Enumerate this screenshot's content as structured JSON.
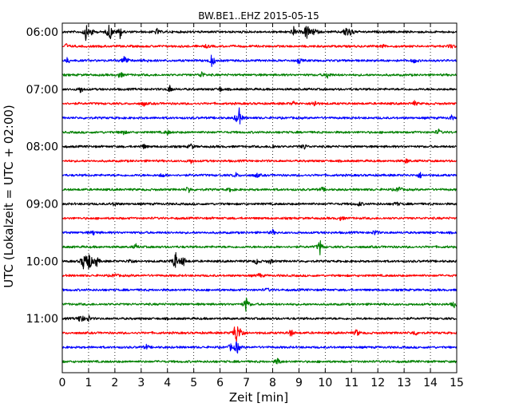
{
  "chart_data": {
    "type": "line",
    "title": "BW.BE1..EHZ 2015-05-15",
    "xlabel": "Zeit  [min]",
    "ylabel": "UTC (Lokalzeit = UTC + 02:00)",
    "xlim": [
      0,
      15
    ],
    "x_ticks": [
      "0",
      "1",
      "2",
      "3",
      "4",
      "5",
      "6",
      "7",
      "8",
      "9",
      "10",
      "11",
      "12",
      "13",
      "14",
      "15"
    ],
    "y_tick_labels": [
      "06:00",
      "07:00",
      "08:00",
      "09:00",
      "10:00",
      "11:00"
    ],
    "grid": "vertical-dotted",
    "trace_colors": [
      "#000000",
      "#ff0000",
      "#0000ff",
      "#008000"
    ],
    "traces": [
      {
        "start": "06:00",
        "color": "#000000",
        "events": [
          [
            0.9,
            10
          ],
          [
            1.1,
            6
          ],
          [
            1.8,
            14
          ],
          [
            2.2,
            8
          ],
          [
            3.6,
            4
          ],
          [
            8.8,
            6
          ],
          [
            9.3,
            14
          ],
          [
            9.6,
            6
          ],
          [
            10.8,
            10
          ],
          [
            11.0,
            6
          ]
        ]
      },
      {
        "start": "06:15",
        "color": "#ff0000",
        "events": [
          [
            0.15,
            3
          ],
          [
            5.5,
            2
          ],
          [
            12.2,
            2
          ],
          [
            14.8,
            3
          ]
        ]
      },
      {
        "start": "06:30",
        "color": "#0000ff",
        "events": [
          [
            0.2,
            4
          ],
          [
            2.4,
            10
          ],
          [
            3.2,
            3
          ],
          [
            5.7,
            10
          ],
          [
            9.0,
            4
          ],
          [
            13.4,
            3
          ]
        ]
      },
      {
        "start": "06:45",
        "color": "#008000",
        "events": [
          [
            2.2,
            5
          ],
          [
            5.3,
            5
          ],
          [
            10.1,
            5
          ]
        ]
      },
      {
        "start": "07:00",
        "color": "#000000",
        "events": [
          [
            0.7,
            5
          ],
          [
            4.1,
            5
          ],
          [
            6.0,
            3
          ]
        ]
      },
      {
        "start": "07:15",
        "color": "#ff0000",
        "events": [
          [
            3.1,
            3
          ],
          [
            8.8,
            3
          ],
          [
            9.6,
            5
          ],
          [
            13.4,
            3
          ]
        ]
      },
      {
        "start": "07:30",
        "color": "#0000ff",
        "events": [
          [
            6.7,
            18
          ],
          [
            14.8,
            3
          ]
        ]
      },
      {
        "start": "07:45",
        "color": "#008000",
        "events": [
          [
            2.3,
            4
          ],
          [
            4.0,
            3
          ],
          [
            14.3,
            4
          ]
        ]
      },
      {
        "start": "08:00",
        "color": "#000000",
        "events": [
          [
            3.1,
            3
          ],
          [
            4.9,
            4
          ],
          [
            8.0,
            3
          ],
          [
            9.2,
            4
          ]
        ]
      },
      {
        "start": "08:15",
        "color": "#ff0000",
        "events": [
          [
            4.9,
            3
          ],
          [
            13.1,
            3
          ]
        ]
      },
      {
        "start": "08:30",
        "color": "#0000ff",
        "events": [
          [
            3.8,
            3
          ],
          [
            6.6,
            3
          ],
          [
            7.4,
            3
          ],
          [
            13.6,
            4
          ]
        ]
      },
      {
        "start": "08:45",
        "color": "#008000",
        "events": [
          [
            4.8,
            5
          ],
          [
            6.4,
            3
          ],
          [
            9.9,
            3
          ],
          [
            12.8,
            5
          ]
        ]
      },
      {
        "start": "09:00",
        "color": "#000000",
        "events": [
          [
            2.0,
            3
          ],
          [
            11.3,
            3
          ],
          [
            12.7,
            3
          ]
        ]
      },
      {
        "start": "09:15",
        "color": "#ff0000",
        "events": [
          [
            10.6,
            3
          ]
        ]
      },
      {
        "start": "09:30",
        "color": "#0000ff",
        "events": [
          [
            1.2,
            3
          ],
          [
            8.0,
            3
          ],
          [
            11.9,
            4
          ]
        ]
      },
      {
        "start": "09:45",
        "color": "#008000",
        "events": [
          [
            2.8,
            3
          ],
          [
            9.8,
            10
          ]
        ]
      },
      {
        "start": "10:00",
        "color": "#000000",
        "events": [
          [
            0.8,
            10
          ],
          [
            1.0,
            22
          ],
          [
            1.3,
            8
          ],
          [
            2.6,
            4
          ],
          [
            4.3,
            14
          ],
          [
            4.6,
            8
          ],
          [
            7.4,
            4
          ],
          [
            7.9,
            3
          ]
        ]
      },
      {
        "start": "10:15",
        "color": "#ff0000",
        "events": [
          [
            2.0,
            3
          ],
          [
            7.5,
            3
          ]
        ]
      },
      {
        "start": "10:30",
        "color": "#0000ff",
        "events": [
          [
            7.8,
            2
          ]
        ]
      },
      {
        "start": "10:45",
        "color": "#008000",
        "events": [
          [
            7.0,
            11
          ],
          [
            14.9,
            4
          ]
        ]
      },
      {
        "start": "11:00",
        "color": "#000000",
        "events": [
          [
            0.7,
            8
          ],
          [
            1.0,
            4
          ]
        ]
      },
      {
        "start": "11:15",
        "color": "#ff0000",
        "events": [
          [
            6.6,
            20
          ],
          [
            6.8,
            8
          ],
          [
            8.7,
            5
          ],
          [
            11.2,
            5
          ],
          [
            13.4,
            4
          ]
        ]
      },
      {
        "start": "11:30",
        "color": "#0000ff",
        "events": [
          [
            6.4,
            4
          ],
          [
            6.65,
            10
          ],
          [
            3.2,
            3
          ]
        ]
      },
      {
        "start": "11:45",
        "color": "#008000",
        "events": [
          [
            8.2,
            5
          ]
        ]
      }
    ]
  }
}
